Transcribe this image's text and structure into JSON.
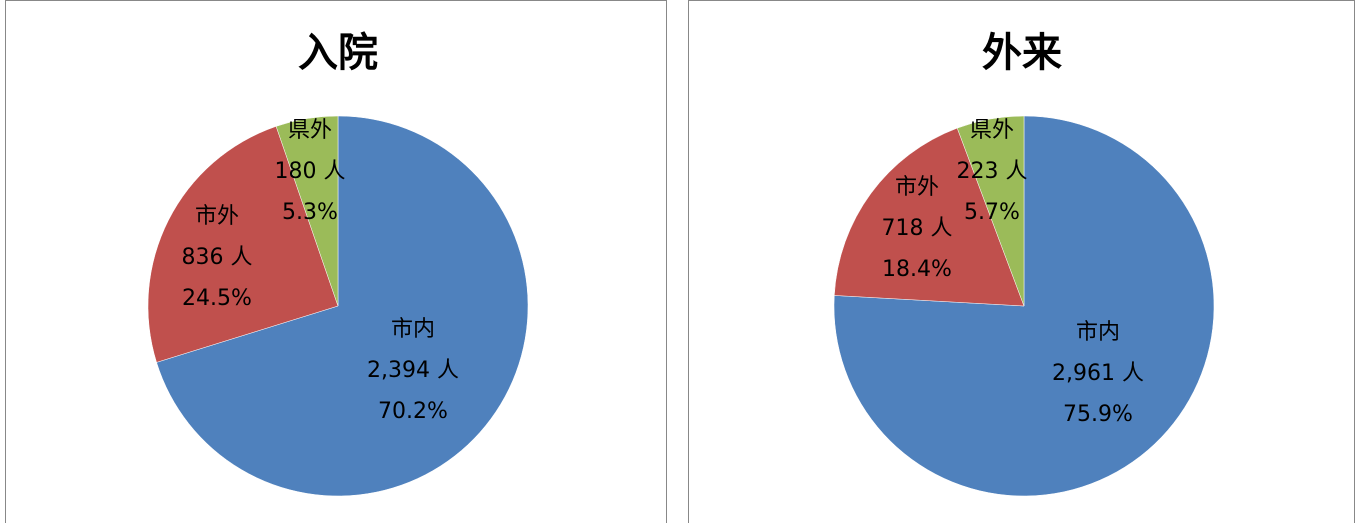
{
  "chart_data": [
    {
      "type": "pie",
      "title": "入院",
      "categories": [
        "市内",
        "市外",
        "県外"
      ],
      "values": [
        2394,
        836,
        180
      ],
      "value_labels": [
        "2,394 人",
        "836 人",
        "180 人"
      ],
      "percents": [
        70.2,
        24.5,
        5.3
      ],
      "percent_labels": [
        "70.2%",
        "24.5%",
        "5.3%"
      ],
      "colors": [
        "#4f81bd",
        "#c0504d",
        "#9bbb59"
      ]
    },
    {
      "type": "pie",
      "title": "外来",
      "categories": [
        "市内",
        "市外",
        "県外"
      ],
      "values": [
        2961,
        718,
        223
      ],
      "value_labels": [
        "2,961 人",
        "718 人",
        "223 人"
      ],
      "percents": [
        75.9,
        18.4,
        5.7
      ],
      "percent_labels": [
        "75.9%",
        "18.4%",
        "5.7%"
      ],
      "colors": [
        "#4f81bd",
        "#c0504d",
        "#9bbb59"
      ]
    }
  ]
}
